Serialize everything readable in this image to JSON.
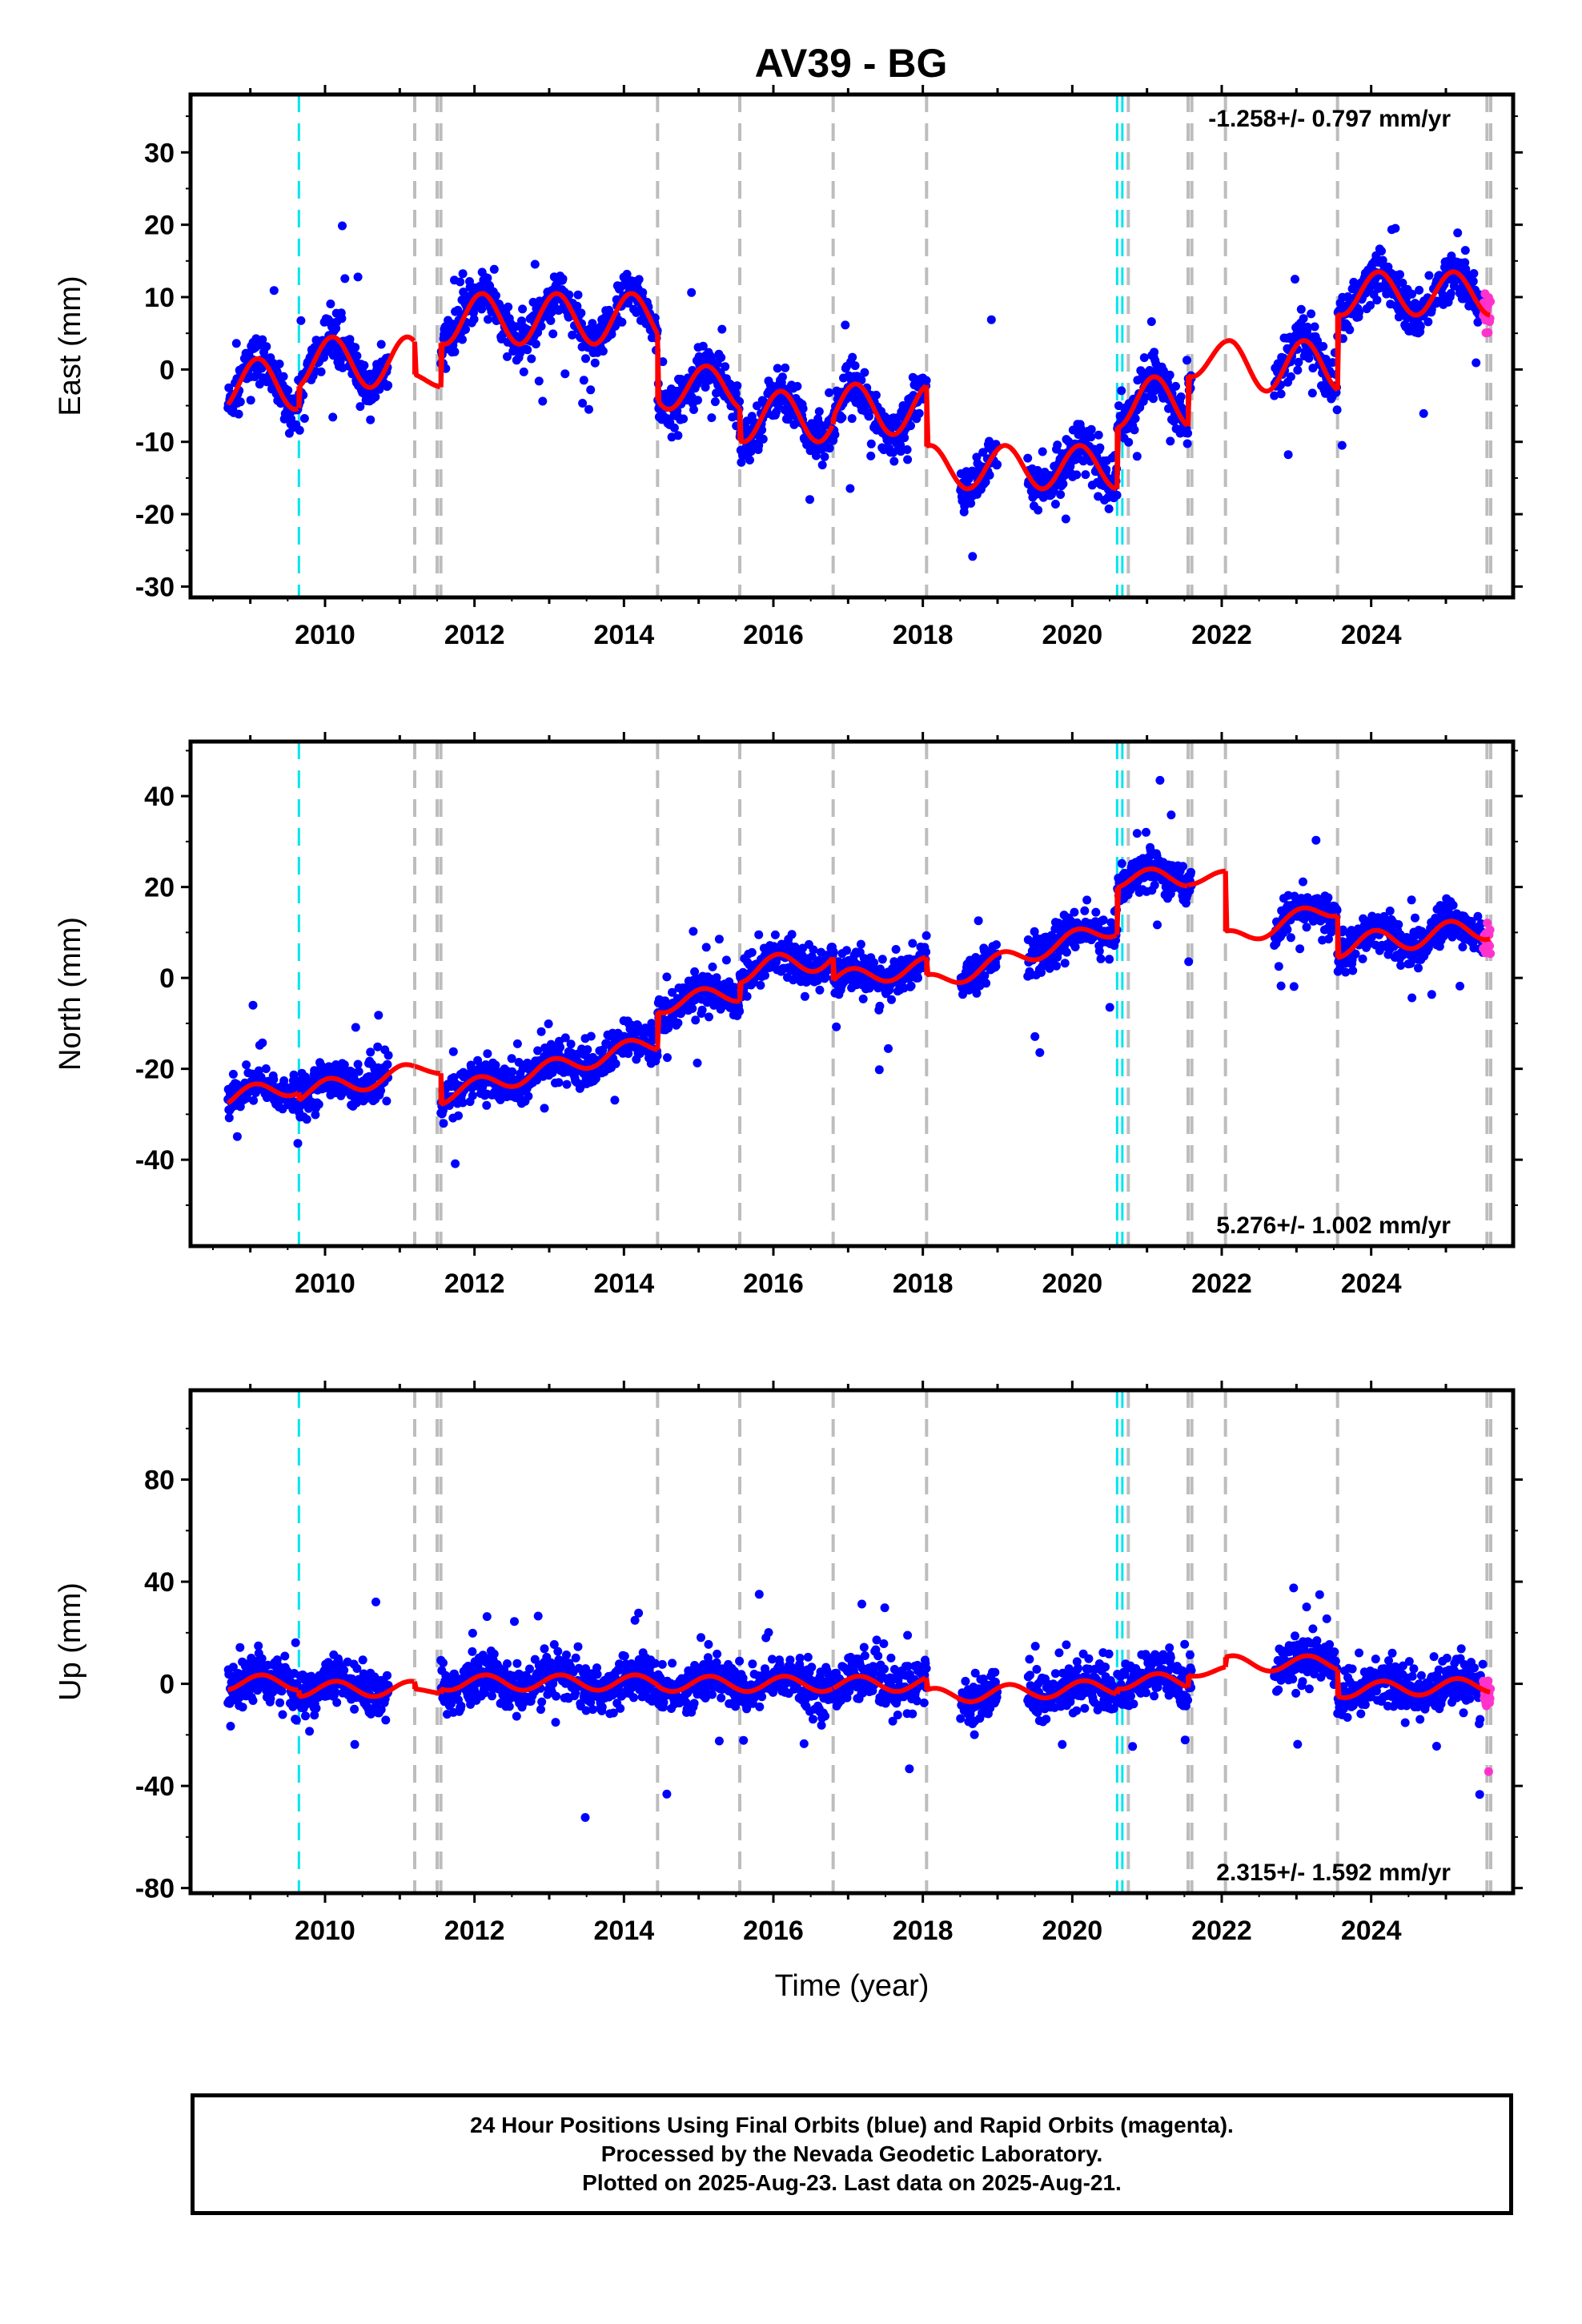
{
  "title": "AV39 - BG",
  "colors": {
    "final_orbits": "#0000ff",
    "rapid_orbits": "#ff33cc",
    "model": "#ff0000",
    "equipment_change": "#bdbdbd",
    "earthquake": "#00e5ee"
  },
  "footer": {
    "line1": "24 Hour Positions Using Final Orbits (blue) and Rapid Orbits (magenta).",
    "line2": "Processed by the Nevada Geodetic Laboratory.",
    "line3": "Plotted on 2025-Aug-23. Last data on 2025-Aug-21."
  },
  "chart_data": [
    {
      "type": "scatter",
      "ylabel": "East (mm)",
      "xlabel": "",
      "rate_label": "-1.258+/- 0.797 mm/yr",
      "xlim": [
        2008.2,
        2025.9
      ],
      "ylim": [
        -31.5,
        38
      ],
      "yticks": [
        -30,
        -20,
        -10,
        0,
        10,
        20,
        30
      ],
      "xticks": [
        2010,
        2012,
        2014,
        2016,
        2018,
        2020,
        2022,
        2024
      ],
      "grey_lines": [
        2011.2,
        2011.5,
        2011.55,
        2014.45,
        2015.55,
        2016.8,
        2018.05,
        2020.75,
        2021.55,
        2021.6,
        2022.05,
        2023.55,
        2025.55,
        2025.6
      ],
      "cyan_lines": [
        2009.65,
        2020.6,
        2020.67
      ],
      "model_segments": [
        {
          "start": 2008.7,
          "end": 2009.65,
          "offset": -2.0,
          "trend": 0,
          "amp": 3.5,
          "phase": 0.15
        },
        {
          "start": 2009.65,
          "end": 2011.2,
          "offset": 1.0,
          "trend": 0,
          "amp": 3.5,
          "phase": 0.15
        },
        {
          "start": 2011.2,
          "end": 2011.55,
          "offset": -1.5,
          "trend": 0,
          "amp": 1.0,
          "phase": 0.15
        },
        {
          "start": 2011.55,
          "end": 2014.45,
          "offset": 7.0,
          "trend": 0,
          "amp": 3.5,
          "phase": 0.15
        },
        {
          "start": 2014.45,
          "end": 2015.55,
          "offset": -2.5,
          "trend": 0,
          "amp": 3.0,
          "phase": 0.15
        },
        {
          "start": 2015.55,
          "end": 2016.8,
          "offset": -6.5,
          "trend": 0,
          "amp": 3.5,
          "phase": 0.15
        },
        {
          "start": 2016.8,
          "end": 2018.05,
          "offset": -5.5,
          "trend": 0,
          "amp": 3.5,
          "phase": 0.15
        },
        {
          "start": 2018.05,
          "end": 2020.6,
          "offset": -13.5,
          "trend": 0,
          "amp": 3.0,
          "phase": 0.15
        },
        {
          "start": 2020.6,
          "end": 2021.55,
          "offset": -4.5,
          "trend": 0,
          "amp": 3.5,
          "phase": 0.15
        },
        {
          "start": 2021.55,
          "end": 2022.05,
          "offset": 1.5,
          "trend": 0,
          "amp": 2.5,
          "phase": 0.15
        },
        {
          "start": 2022.05,
          "end": 2023.55,
          "offset": 0.5,
          "trend": 0,
          "amp": 3.5,
          "phase": 0.15
        },
        {
          "start": 2023.55,
          "end": 2025.6,
          "offset": 10.5,
          "trend": 0,
          "amp": 3.0,
          "phase": 0.15
        }
      ],
      "data_gaps": [
        [
          2010.85,
          2011.55
        ],
        [
          2018.05,
          2018.5
        ],
        [
          2019.0,
          2019.4
        ],
        [
          2021.6,
          2022.7
        ]
      ],
      "noise": 2.8
    },
    {
      "type": "scatter",
      "ylabel": "North (mm)",
      "xlabel": "",
      "rate_label": "5.276+/- 1.002 mm/yr",
      "xlim": [
        2008.2,
        2025.9
      ],
      "ylim": [
        -59,
        52
      ],
      "yticks": [
        -40,
        -20,
        0,
        20,
        40
      ],
      "xticks": [
        2010,
        2012,
        2014,
        2016,
        2018,
        2020,
        2022,
        2024
      ],
      "grey_lines": [
        2011.2,
        2011.5,
        2011.55,
        2014.45,
        2015.55,
        2016.8,
        2018.05,
        2020.75,
        2021.55,
        2021.6,
        2022.05,
        2023.55,
        2025.55,
        2025.6
      ],
      "cyan_lines": [
        2009.65,
        2020.6,
        2020.67
      ],
      "model_segments": [
        {
          "start": 2008.7,
          "end": 2009.65,
          "offset": -25.0,
          "trend": 3.0,
          "amp": 2.0,
          "phase": 0.2
        },
        {
          "start": 2009.65,
          "end": 2011.2,
          "offset": -23.0,
          "trend": 3.0,
          "amp": 2.0,
          "phase": 0.2
        },
        {
          "start": 2011.2,
          "end": 2011.55,
          "offset": -20.0,
          "trend": 0,
          "amp": 1.0,
          "phase": 0.2
        },
        {
          "start": 2011.55,
          "end": 2014.45,
          "offset": -20.0,
          "trend": 4.0,
          "amp": 2.0,
          "phase": 0.2
        },
        {
          "start": 2014.45,
          "end": 2015.55,
          "offset": -4.5,
          "trend": 2.5,
          "amp": 2.0,
          "phase": 0.2
        },
        {
          "start": 2015.55,
          "end": 2016.8,
          "offset": 3.0,
          "trend": 2.5,
          "amp": 2.5,
          "phase": 0.2
        },
        {
          "start": 2016.8,
          "end": 2018.05,
          "offset": 1.0,
          "trend": 2.5,
          "amp": 2.0,
          "phase": 0.2
        },
        {
          "start": 2018.05,
          "end": 2020.6,
          "offset": 5.0,
          "trend": 5.0,
          "amp": 2.0,
          "phase": 0.2
        },
        {
          "start": 2020.6,
          "end": 2021.55,
          "offset": 22.0,
          "trend": 0.5,
          "amp": 2.0,
          "phase": 0.2
        },
        {
          "start": 2021.55,
          "end": 2022.05,
          "offset": 22.0,
          "trend": 0,
          "amp": 1.5,
          "phase": 0.2
        },
        {
          "start": 2022.05,
          "end": 2023.55,
          "offset": 12.0,
          "trend": 5.0,
          "amp": 2.0,
          "phase": 0.2
        },
        {
          "start": 2023.55,
          "end": 2025.6,
          "offset": 9.0,
          "trend": 2.0,
          "amp": 2.5,
          "phase": 0.2
        }
      ],
      "data_gaps": [
        [
          2010.85,
          2011.55
        ],
        [
          2018.05,
          2018.5
        ],
        [
          2019.0,
          2019.4
        ],
        [
          2021.6,
          2022.7
        ]
      ],
      "noise": 3.8
    },
    {
      "type": "scatter",
      "ylabel": "Up (mm)",
      "xlabel": "Time (year)",
      "rate_label": "2.315+/- 1.592 mm/yr",
      "xlim": [
        2008.2,
        2025.9
      ],
      "ylim": [
        -82,
        115
      ],
      "yticks": [
        -80,
        -40,
        0,
        40,
        80
      ],
      "xticks": [
        2010,
        2012,
        2014,
        2016,
        2018,
        2020,
        2022,
        2024
      ],
      "grey_lines": [
        2011.2,
        2011.5,
        2011.55,
        2014.45,
        2015.55,
        2016.8,
        2018.05,
        2020.75,
        2021.55,
        2021.6,
        2022.05,
        2023.55,
        2025.55,
        2025.6
      ],
      "cyan_lines": [
        2009.65,
        2020.6,
        2020.67
      ],
      "model_segments": [
        {
          "start": 2008.7,
          "end": 2009.65,
          "offset": 0.5,
          "trend": 0,
          "amp": 3.0,
          "phase": 0.1
        },
        {
          "start": 2009.65,
          "end": 2011.2,
          "offset": -2.0,
          "trend": 0,
          "amp": 3.0,
          "phase": 0.1
        },
        {
          "start": 2011.2,
          "end": 2011.55,
          "offset": -3.0,
          "trend": 0,
          "amp": 1.0,
          "phase": 0.1
        },
        {
          "start": 2011.55,
          "end": 2014.45,
          "offset": 0.5,
          "trend": 0,
          "amp": 3.0,
          "phase": 0.1
        },
        {
          "start": 2014.45,
          "end": 2015.55,
          "offset": 0.0,
          "trend": 0,
          "amp": 3.0,
          "phase": 0.1
        },
        {
          "start": 2015.55,
          "end": 2016.8,
          "offset": 0.0,
          "trend": 0,
          "amp": 3.0,
          "phase": 0.1
        },
        {
          "start": 2016.8,
          "end": 2018.05,
          "offset": 0.0,
          "trend": 0,
          "amp": 3.0,
          "phase": 0.1
        },
        {
          "start": 2018.05,
          "end": 2020.6,
          "offset": -3.0,
          "trend": 1.5,
          "amp": 3.0,
          "phase": 0.1
        },
        {
          "start": 2020.6,
          "end": 2021.55,
          "offset": 1.0,
          "trend": 0,
          "amp": 3.0,
          "phase": 0.1
        },
        {
          "start": 2021.55,
          "end": 2022.05,
          "offset": 5.0,
          "trend": 0,
          "amp": 2.0,
          "phase": 0.1
        },
        {
          "start": 2022.05,
          "end": 2023.55,
          "offset": 8.0,
          "trend": 0,
          "amp": 3.0,
          "phase": 0.1
        },
        {
          "start": 2023.55,
          "end": 2025.6,
          "offset": -1.5,
          "trend": 1.0,
          "amp": 3.0,
          "phase": 0.1
        }
      ],
      "data_gaps": [
        [
          2010.85,
          2011.55
        ],
        [
          2018.05,
          2018.5
        ],
        [
          2019.0,
          2019.4
        ],
        [
          2021.6,
          2022.7
        ]
      ],
      "noise": 8.0
    }
  ]
}
